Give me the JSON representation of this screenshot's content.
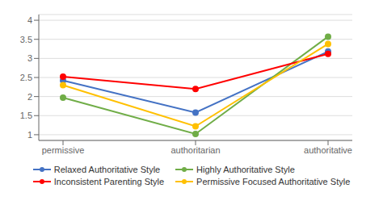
{
  "chart_data": {
    "type": "line",
    "categories": [
      "permissive",
      "authoritarian",
      "authoritative"
    ],
    "series": [
      {
        "name": "Relaxed Authoritative Style",
        "color": "#4472C4",
        "marker": "circle",
        "values": [
          2.42,
          1.58,
          3.18
        ]
      },
      {
        "name": "Highly Authoritative Style",
        "color": "#70AD47",
        "marker": "circle",
        "values": [
          1.97,
          1.02,
          3.57
        ]
      },
      {
        "name": "Inconsistent Parenting Style",
        "color": "#FF0000",
        "marker": "circle",
        "values": [
          2.52,
          2.2,
          3.12
        ]
      },
      {
        "name": "Permissive Focused Authoritative Style",
        "color": "#FFC000",
        "marker": "circle",
        "values": [
          2.3,
          1.22,
          3.38
        ]
      }
    ],
    "ylim": [
      0.85,
      4.15
    ],
    "yticks": [
      1.0,
      1.5,
      2.0,
      2.5,
      3.0,
      3.5,
      4.0
    ],
    "grid": true,
    "legend": "bottom"
  }
}
